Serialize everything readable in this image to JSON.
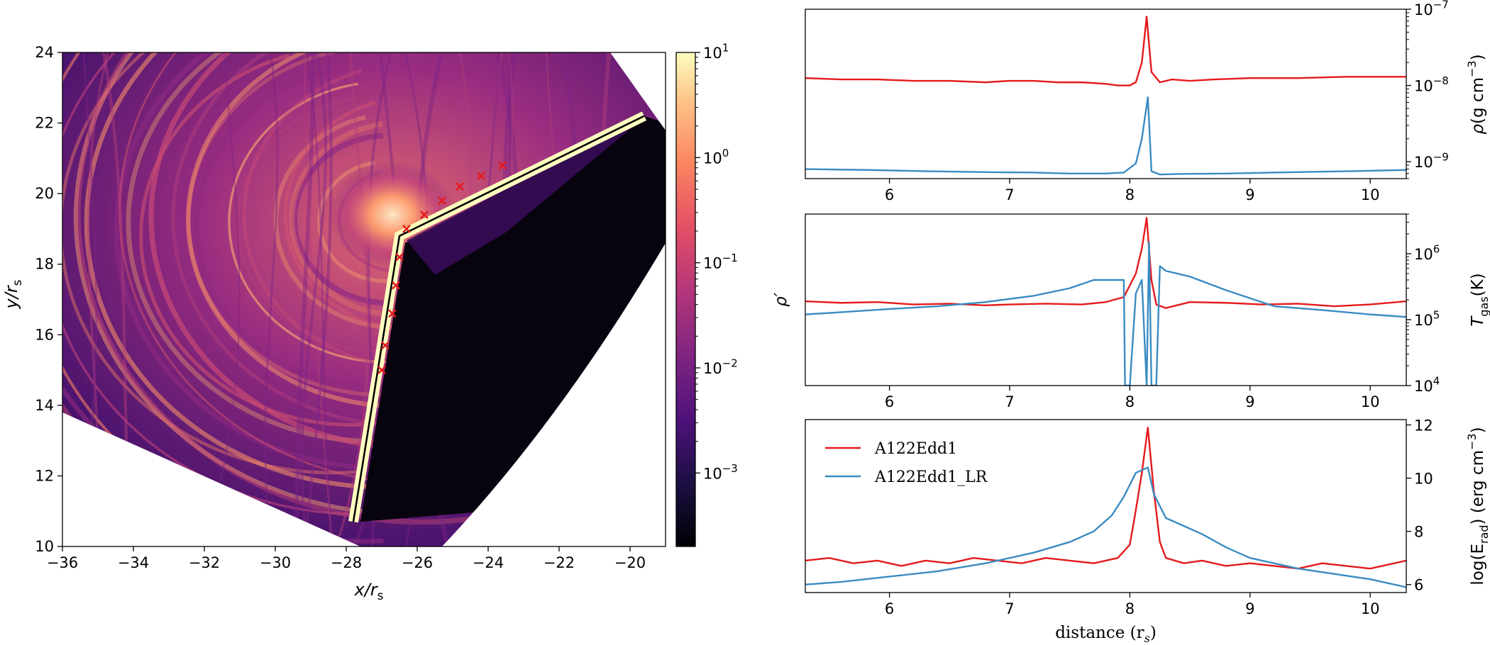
{
  "colors": {
    "red": "#e41a1c",
    "blue": "#3a8bc2",
    "axis": "#000000"
  },
  "chart_data": [
    {
      "id": "map",
      "type": "heatmap",
      "title": "",
      "xlabel": "x/r",
      "xlabel_sub": "s",
      "ylabel": "y/r",
      "ylabel_sub": "s",
      "xlim": [
        -36,
        -19
      ],
      "ylim": [
        10,
        24
      ],
      "xticks": [
        -36,
        -34,
        -32,
        -30,
        -28,
        -26,
        -24,
        -22,
        -20
      ],
      "yticks": [
        10,
        12,
        14,
        16,
        18,
        20,
        22,
        24
      ],
      "colorbar": {
        "scale": "log",
        "range": [
          0.0002,
          10
        ],
        "tick_labels": [
          {
            "base": "10",
            "exp": "1",
            "value": 10
          },
          {
            "base": "10",
            "exp": "0",
            "value": 1
          },
          {
            "base": "10",
            "exp": "−1",
            "value": 0.1
          },
          {
            "base": "10",
            "exp": "−2",
            "value": 0.01
          },
          {
            "base": "10",
            "exp": "−3",
            "value": 0.001
          }
        ],
        "colormap": "magma"
      },
      "jet_centerline": [
        [
          -27.8,
          10.7
        ],
        [
          -26.5,
          18.8
        ],
        [
          -19.6,
          22.2
        ]
      ],
      "markers_red_x": [
        [
          -27.0,
          15.0
        ],
        [
          -26.9,
          15.7
        ],
        [
          -26.7,
          16.6
        ],
        [
          -26.6,
          17.4
        ],
        [
          -26.5,
          18.2
        ],
        [
          -26.3,
          19.0
        ],
        [
          -25.8,
          19.4
        ],
        [
          -25.3,
          19.8
        ],
        [
          -24.8,
          20.2
        ],
        [
          -24.2,
          20.5
        ],
        [
          -23.6,
          20.8
        ]
      ]
    },
    {
      "id": "density",
      "type": "line",
      "ylabel": "ρ(g cm",
      "ylabel_sup": "−3",
      "ylabel_tail": ")",
      "scale": "log",
      "xlim": [
        5.3,
        10.3
      ],
      "ylim": [
        6e-10,
        1e-07
      ],
      "xticks": [
        6,
        7,
        8,
        9,
        10
      ],
      "ytick_labels": [
        {
          "base": "10",
          "exp": "−7",
          "value": 1e-07
        },
        {
          "base": "10",
          "exp": "−8",
          "value": 1e-08
        },
        {
          "base": "10",
          "exp": "−9",
          "value": 1e-09
        }
      ],
      "series": [
        {
          "name": "A122Edd1",
          "color": "#e41a1c",
          "x": [
            5.3,
            5.6,
            5.9,
            6.2,
            6.5,
            6.8,
            7.0,
            7.2,
            7.4,
            7.6,
            7.8,
            7.9,
            8.0,
            8.05,
            8.1,
            8.14,
            8.18,
            8.25,
            8.35,
            8.5,
            8.7,
            9.0,
            9.4,
            9.8,
            10.3
          ],
          "y": [
            1.25e-08,
            1.2e-08,
            1.2e-08,
            1.15e-08,
            1.15e-08,
            1.1e-08,
            1.15e-08,
            1.15e-08,
            1.1e-08,
            1.1e-08,
            1.05e-08,
            1e-08,
            1e-08,
            1.1e-08,
            2e-08,
            8e-08,
            1.5e-08,
            1.1e-08,
            1.2e-08,
            1.15e-08,
            1.2e-08,
            1.25e-08,
            1.25e-08,
            1.3e-08,
            1.3e-08
          ]
        },
        {
          "name": "A122Edd1_LR",
          "color": "#3a8bc2",
          "x": [
            5.3,
            5.8,
            6.3,
            6.8,
            7.2,
            7.5,
            7.8,
            7.95,
            8.05,
            8.1,
            8.15,
            8.18,
            8.25,
            8.4,
            8.8,
            9.2,
            9.6,
            10.0,
            10.3
          ],
          "y": [
            8e-10,
            7.8e-10,
            7.5e-10,
            7.3e-10,
            7.2e-10,
            7e-10,
            7e-10,
            7.2e-10,
            9.5e-10,
            2e-09,
            7e-09,
            7.5e-10,
            6.8e-10,
            6.9e-10,
            7e-10,
            7.2e-10,
            7.4e-10,
            7.6e-10,
            7.8e-10
          ]
        }
      ]
    },
    {
      "id": "temperature",
      "type": "line",
      "ylabel_left": "ρ′",
      "ylabel": "T",
      "ylabel_sub": "gas",
      "ylabel_tail": "(K)",
      "scale": "log",
      "xlim": [
        5.3,
        10.3
      ],
      "ylim": [
        10000,
        4000000
      ],
      "xticks": [
        6,
        7,
        8,
        9,
        10
      ],
      "ytick_labels": [
        {
          "base": "10",
          "exp": "6",
          "value": 1000000.0
        },
        {
          "base": "10",
          "exp": "5",
          "value": 100000.0
        },
        {
          "base": "10",
          "exp": "4",
          "value": 10000.0
        }
      ],
      "series": [
        {
          "name": "A122Edd1",
          "color": "#e41a1c",
          "x": [
            5.3,
            5.6,
            5.9,
            6.2,
            6.5,
            6.8,
            7.0,
            7.3,
            7.6,
            7.8,
            7.95,
            8.05,
            8.1,
            8.14,
            8.18,
            8.22,
            8.3,
            8.5,
            8.8,
            9.1,
            9.4,
            9.7,
            10.0,
            10.3
          ],
          "y": [
            190000,
            180000,
            185000,
            170000,
            175000,
            165000,
            170000,
            175000,
            170000,
            185000,
            220000,
            500000,
            1200000,
            3500000,
            400000,
            170000,
            150000,
            185000,
            180000,
            170000,
            175000,
            160000,
            170000,
            190000
          ]
        },
        {
          "name": "A122Edd1_LR",
          "color": "#3a8bc2",
          "x": [
            5.3,
            5.6,
            6.0,
            6.4,
            6.8,
            7.2,
            7.5,
            7.7,
            7.95,
            7.96,
            8.0,
            8.05,
            8.1,
            8.14,
            8.16,
            8.18,
            8.22,
            8.25,
            8.3,
            8.5,
            8.8,
            9.2,
            9.6,
            10.0,
            10.3
          ],
          "y": [
            120000,
            130000,
            145000,
            160000,
            185000,
            230000,
            300000,
            400000,
            400000,
            10000,
            10000,
            250000,
            400000,
            10000,
            1500000,
            10000,
            10000,
            650000,
            550000,
            450000,
            280000,
            160000,
            140000,
            120000,
            110000
          ]
        }
      ]
    },
    {
      "id": "radiation",
      "type": "line",
      "ylabel": "log(E",
      "ylabel_sub": "rad",
      "ylabel_tail": ") (erg cm",
      "ylabel_sup": "−3",
      "ylabel_end": ")",
      "xlabel": "distance (r",
      "xlabel_sub": "s",
      "xlabel_tail": ")",
      "xlim": [
        5.3,
        10.3
      ],
      "ylim": [
        5.7,
        12.2
      ],
      "xticks": [
        6,
        7,
        8,
        9,
        10
      ],
      "yticks": [
        6,
        8,
        10,
        12
      ],
      "legend": {
        "position": "upper-left",
        "entries": [
          "A122Edd1",
          "A122Edd1_LR"
        ]
      },
      "series": [
        {
          "name": "A122Edd1",
          "color": "#e41a1c",
          "x": [
            5.3,
            5.5,
            5.7,
            5.9,
            6.1,
            6.3,
            6.5,
            6.7,
            6.9,
            7.1,
            7.3,
            7.5,
            7.7,
            7.9,
            8.0,
            8.05,
            8.1,
            8.15,
            8.2,
            8.25,
            8.3,
            8.45,
            8.6,
            8.8,
            9.0,
            9.2,
            9.4,
            9.6,
            9.8,
            10.0,
            10.3
          ],
          "y": [
            6.9,
            7.0,
            6.8,
            6.9,
            6.7,
            6.9,
            6.8,
            7.0,
            6.9,
            6.8,
            7.0,
            6.9,
            6.8,
            7.0,
            7.5,
            8.8,
            10.2,
            11.9,
            9.5,
            7.6,
            7.0,
            6.8,
            6.9,
            6.7,
            6.8,
            6.7,
            6.6,
            6.8,
            6.7,
            6.6,
            6.9
          ]
        },
        {
          "name": "A122Edd1_LR",
          "color": "#3a8bc2",
          "x": [
            5.3,
            5.6,
            6.0,
            6.4,
            6.8,
            7.2,
            7.5,
            7.7,
            7.85,
            7.95,
            8.05,
            8.15,
            8.2,
            8.3,
            8.45,
            8.6,
            8.8,
            9.0,
            9.2,
            9.4,
            9.7,
            10.0,
            10.3
          ],
          "y": [
            6.0,
            6.1,
            6.3,
            6.5,
            6.8,
            7.2,
            7.6,
            8.0,
            8.6,
            9.3,
            10.2,
            10.4,
            9.4,
            8.5,
            8.2,
            7.9,
            7.4,
            7.0,
            6.8,
            6.6,
            6.4,
            6.2,
            5.9
          ]
        }
      ]
    }
  ]
}
